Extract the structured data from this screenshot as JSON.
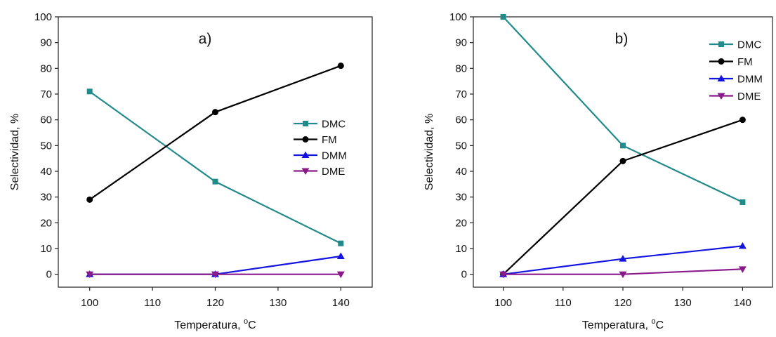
{
  "chart_data": [
    {
      "type": "line",
      "panel_label": "a)",
      "xlabel": "Temperatura, °C",
      "xlabel_main": "Temperatura, ",
      "xlabel_sup": "o",
      "xlabel_unit": "C",
      "ylabel": "Selectividad, %",
      "x": [
        100,
        120,
        140
      ],
      "xlim": [
        95,
        145
      ],
      "ylim": [
        -5,
        100
      ],
      "xticks": [
        100,
        110,
        120,
        130,
        140
      ],
      "yticks": [
        0,
        10,
        20,
        30,
        40,
        50,
        60,
        70,
        80,
        90,
        100
      ],
      "legend_position": "right",
      "series": [
        {
          "name": "DMC",
          "values": [
            71,
            36,
            12
          ],
          "color": "#218a8a",
          "marker": "square"
        },
        {
          "name": "FM",
          "values": [
            29,
            63,
            81
          ],
          "color": "#000000",
          "marker": "circle"
        },
        {
          "name": "DMM",
          "values": [
            0,
            0,
            7
          ],
          "color": "#1414e0",
          "marker": "triangle-up"
        },
        {
          "name": "DME",
          "values": [
            0,
            0,
            0
          ],
          "color": "#8b1a8b",
          "marker": "triangle-down"
        }
      ]
    },
    {
      "type": "line",
      "panel_label": "b)",
      "xlabel": "Temperatura, °C",
      "xlabel_main": "Temperatura, ",
      "xlabel_sup": "o",
      "xlabel_unit": "C",
      "ylabel": "Selectividad, %",
      "x": [
        100,
        120,
        140
      ],
      "xlim": [
        95,
        145
      ],
      "ylim": [
        -5,
        100
      ],
      "xticks": [
        100,
        110,
        120,
        130,
        140
      ],
      "yticks": [
        0,
        10,
        20,
        30,
        40,
        50,
        60,
        70,
        80,
        90,
        100
      ],
      "legend_position": "top-right",
      "series": [
        {
          "name": "DMC",
          "values": [
            100,
            50,
            28
          ],
          "color": "#218a8a",
          "marker": "square"
        },
        {
          "name": "FM",
          "values": [
            0,
            44,
            60
          ],
          "color": "#000000",
          "marker": "circle"
        },
        {
          "name": "DMM",
          "values": [
            0,
            6,
            11
          ],
          "color": "#1414e0",
          "marker": "triangle-up"
        },
        {
          "name": "DME",
          "values": [
            0,
            0,
            2
          ],
          "color": "#8b1a8b",
          "marker": "triangle-down"
        }
      ]
    }
  ]
}
